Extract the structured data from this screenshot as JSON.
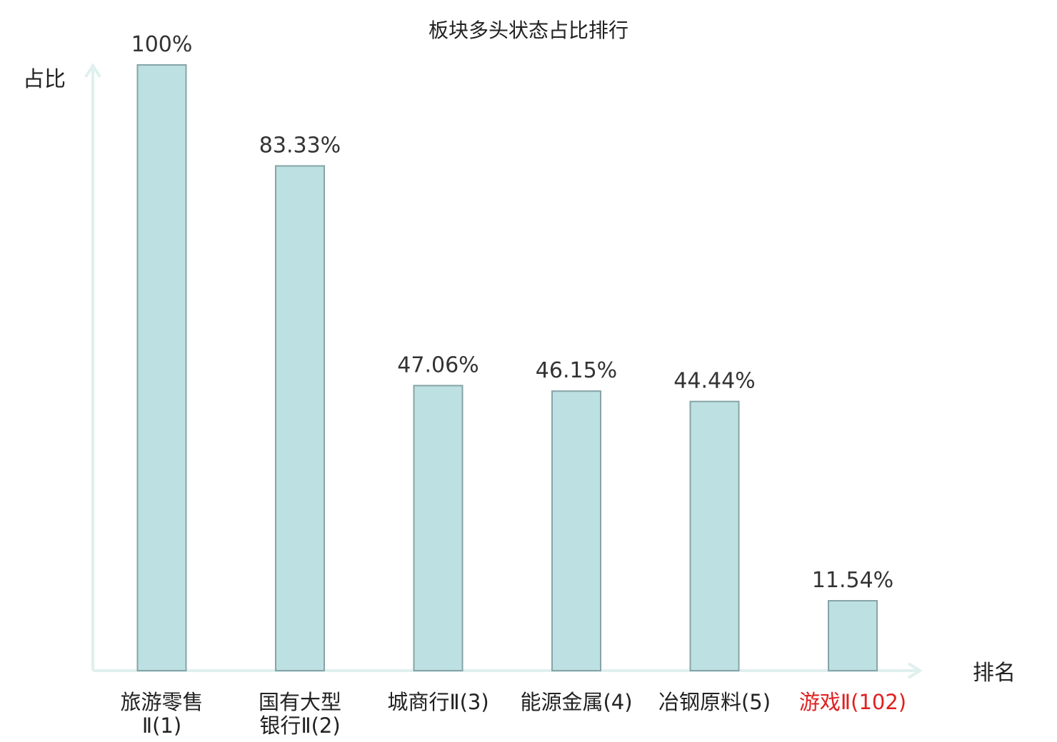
{
  "chart_data": {
    "type": "bar",
    "title": "板块多头状态占比排行",
    "ylabel": "占比",
    "xlabel": "排名",
    "ylim": [
      0,
      100
    ],
    "grid": false,
    "categories": [
      [
        "旅游零售",
        "Ⅱ(1)"
      ],
      [
        "国有大型",
        "银行Ⅱ(2)"
      ],
      [
        "城商行Ⅱ(3)"
      ],
      [
        "能源金属(4)"
      ],
      [
        "冶钢原料(5)"
      ],
      [
        "游戏Ⅱ(102)"
      ]
    ],
    "values": [
      100,
      83.33,
      47.06,
      46.15,
      44.44,
      11.54
    ],
    "value_labels": [
      "100%",
      "83.33%",
      "47.06%",
      "46.15%",
      "44.44%",
      "11.54%"
    ],
    "highlight_index": 5,
    "colors": {
      "bar_fill": "#bde0e2",
      "bar_stroke": "#86a4a7",
      "axis": "#dff0ee",
      "text": "#222222",
      "highlight": "#e02020"
    }
  }
}
